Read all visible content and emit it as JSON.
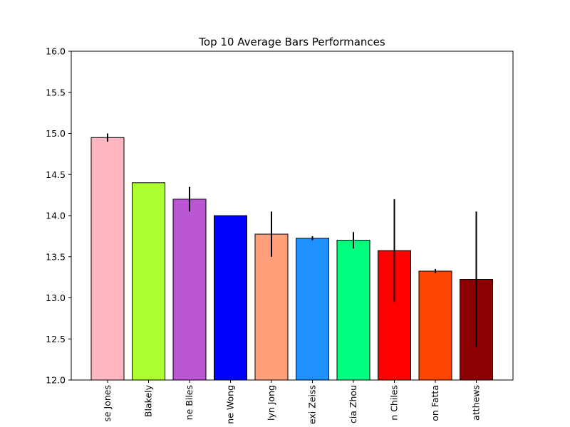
{
  "chart_data": {
    "type": "bar",
    "title": "Top 10 Average Bars Performances",
    "xlabel": "",
    "ylabel": "",
    "ylim": [
      12.0,
      16.0
    ],
    "yticks": [
      "12.0",
      "12.5",
      "13.0",
      "13.5",
      "14.0",
      "14.5",
      "15.0",
      "15.5",
      "16.0"
    ],
    "categories": [
      "Jesse Jones",
      "Blakely",
      "Simone Biles",
      "Jane Wong",
      "Kaitlyn Jong",
      "Lexi Zeiss",
      "Leticia Zhou",
      "Jordan Chiles",
      "Addison Fatta",
      "Matthews"
    ],
    "tick_labels": [
      "se Jones",
      "Blakely",
      "ne Biles",
      "ne Wong",
      "lyn Jong",
      "exi Zeiss",
      "cia Zhou",
      "n Chiles",
      "on Fatta",
      "atthews"
    ],
    "values": [
      14.95,
      14.4,
      14.2,
      14.0,
      13.775,
      13.725,
      13.7,
      13.575,
      13.325,
      13.225
    ],
    "errors": [
      0.05,
      0.0,
      0.15,
      0.0,
      0.275,
      0.025,
      0.1,
      0.625,
      0.025,
      0.825
    ],
    "colors": [
      "#FFB6C1",
      "#ADFF2F",
      "#BA55D3",
      "#0000FF",
      "#FFA07A",
      "#1E90FF",
      "#00FF7F",
      "#FF0000",
      "#FF4500",
      "#8B0000"
    ],
    "grid": false,
    "legend": "none"
  }
}
